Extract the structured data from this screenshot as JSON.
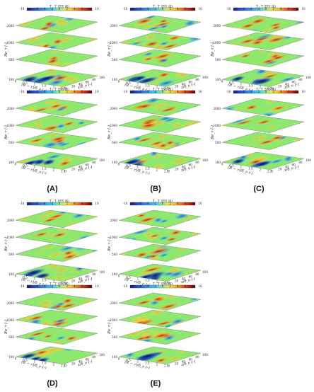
{
  "figure": {
    "panels": [
      {
        "label": "(A)",
        "col": 0,
        "row": 0,
        "subplots": 2
      },
      {
        "label": "(B)",
        "col": 1,
        "row": 0,
        "subplots": 2
      },
      {
        "label": "(C)",
        "col": 2,
        "row": 0,
        "subplots": 2
      },
      {
        "label": "(D)",
        "col": 0,
        "row": 1,
        "subplots": 2
      },
      {
        "label": "(E)",
        "col": 1,
        "row": 1,
        "subplots": 2
      }
    ],
    "colorbar": {
      "title": "T - T_SYS (K)",
      "ticks": [
        "-10",
        "-8",
        "-6",
        "-4",
        "-2",
        "0",
        "2",
        "4",
        "6",
        "8",
        "10"
      ],
      "colors": [
        "#1a1a8c",
        "#2b5fd9",
        "#3ba7f0",
        "#4fd6e6",
        "#7ef0b0",
        "#b8f26a",
        "#f0e84a",
        "#f5a62e",
        "#e8561f",
        "#b01212",
        "#5a0000"
      ]
    },
    "axes": {
      "y_label": "Re_τ (-)",
      "y_ticks": [
        "2000",
        "1000",
        "500",
        "100"
      ],
      "x_label": "(R − r)/δ_ν (-)",
      "x_ticks": [
        "0",
        "0.5",
        "1",
        "1.5",
        "2",
        "2.5"
      ],
      "z_label": "z/δ_ν (-)",
      "z_ticks": [
        "0",
        "20",
        "40",
        "60",
        "80",
        "100"
      ]
    },
    "field_colors": {
      "base": "#8ee86e",
      "cool": "#2f8fe8",
      "cold": "#16207a",
      "warm": "#f0d040",
      "hot": "#d8381a",
      "hotter": "#7a0a0a"
    }
  }
}
